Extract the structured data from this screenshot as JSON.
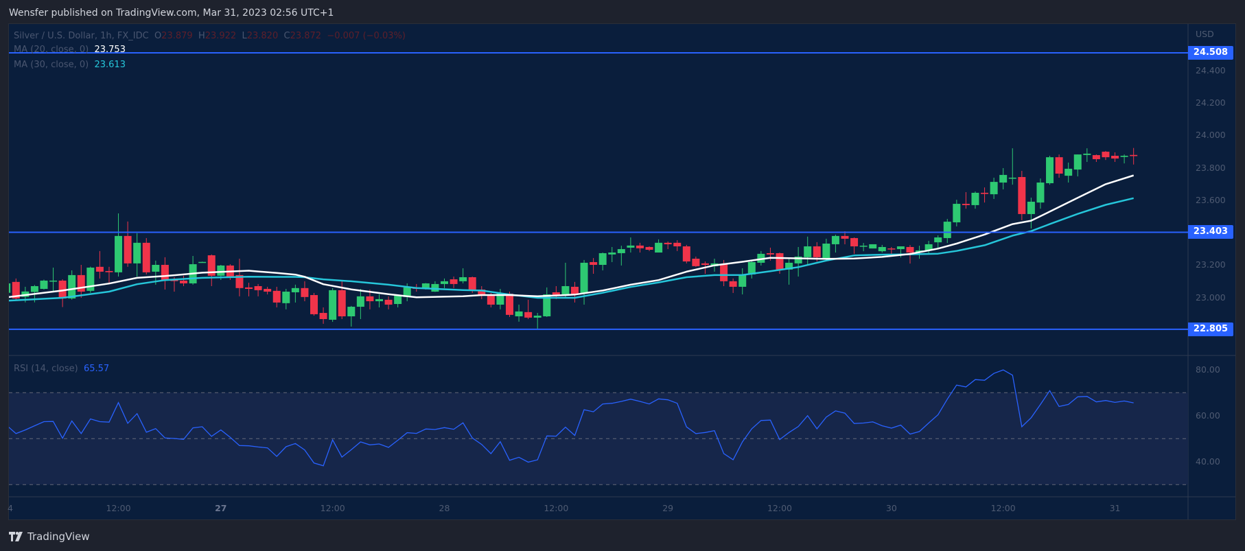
{
  "header": {
    "published": "Wensfer published on TradingView.com, Mar 31, 2023 02:56 UTC+1"
  },
  "legend": {
    "symbol": "Silver / U.S. Dollar, 1h, FX_IDC",
    "o_label": "O",
    "o_value": "23.879",
    "h_label": "H",
    "h_value": "23.922",
    "l_label": "L",
    "l_value": "23.820",
    "c_label": "C",
    "c_value": "23.872",
    "change": "−0.007 (−0.03%)",
    "ma20_label": "MA (20, close, 0)",
    "ma20_value": "23.753",
    "ma30_label": "MA (30, close, 0)",
    "ma30_value": "23.613",
    "rsi_label": "RSI (14, close)",
    "rsi_value": "65.57"
  },
  "price_axis": {
    "currency": "USD",
    "ticks": [
      "24.400",
      "24.200",
      "24.000",
      "23.800",
      "23.600",
      "23.200",
      "23.000"
    ],
    "tick_values": [
      24.4,
      24.2,
      24.0,
      23.8,
      23.6,
      23.2,
      23.0
    ],
    "level_tags": [
      "24.508",
      "23.403",
      "22.805"
    ],
    "level_values": [
      24.508,
      23.403,
      22.805
    ]
  },
  "rsi_axis": {
    "ticks": [
      "80.00",
      "60.00",
      "40.00"
    ],
    "tick_values": [
      80,
      60,
      40
    ],
    "bands": [
      70,
      50,
      30
    ]
  },
  "time_axis": {
    "labels": [
      "4",
      "12:00",
      "27",
      "12:00",
      "28",
      "12:00",
      "29",
      "12:00",
      "30",
      "12:00",
      "31"
    ],
    "bar_index": [
      0,
      12,
      23,
      35,
      47,
      59,
      71,
      83,
      95,
      107,
      119
    ],
    "bold": [
      false,
      false,
      true,
      false,
      false,
      false,
      false,
      false,
      false,
      false,
      false
    ]
  },
  "logo": {
    "text": "TradingView"
  },
  "colors": {
    "up": "#2ec972",
    "down": "#f0344a",
    "ma20": "#ffffff",
    "ma30": "#26c6da",
    "level": "#2962ff",
    "rsi": "#2962ff",
    "rsi_band": "#16264a"
  },
  "chart_data": {
    "type": "candlestick",
    "title": "Silver / U.S. Dollar, 1h, FX_IDC",
    "ylim": [
      22.64,
      24.58
    ],
    "ohlc": [
      [
        23.03,
        23.095,
        23.0,
        23.088
      ],
      [
        23.097,
        23.118,
        22.981,
        22.995
      ],
      [
        23.005,
        23.067,
        22.971,
        23.038
      ],
      [
        23.035,
        23.078,
        22.971,
        23.071
      ],
      [
        23.054,
        23.111,
        23.05,
        23.105
      ],
      [
        23.103,
        23.185,
        23.039,
        23.105
      ],
      [
        23.105,
        23.113,
        22.942,
        22.995
      ],
      [
        22.995,
        23.168,
        22.988,
        23.139
      ],
      [
        23.139,
        23.202,
        22.999,
        23.037
      ],
      [
        23.042,
        23.191,
        23.03,
        23.185
      ],
      [
        23.19,
        23.287,
        23.118,
        23.16
      ],
      [
        23.164,
        23.19,
        23.082,
        23.157
      ],
      [
        23.156,
        23.519,
        23.13,
        23.38
      ],
      [
        23.38,
        23.469,
        23.19,
        23.211
      ],
      [
        23.211,
        23.397,
        23.13,
        23.338
      ],
      [
        23.338,
        23.367,
        23.143,
        23.156
      ],
      [
        23.16,
        23.228,
        23.08,
        23.202
      ],
      [
        23.202,
        23.249,
        23.05,
        23.105
      ],
      [
        23.111,
        23.126,
        23.037,
        23.102
      ],
      [
        23.105,
        23.135,
        23.071,
        23.088
      ],
      [
        23.088,
        23.257,
        23.08,
        23.206
      ],
      [
        23.218,
        23.222,
        23.216,
        23.22
      ],
      [
        23.261,
        23.266,
        23.071,
        23.135
      ],
      [
        23.135,
        23.202,
        23.109,
        23.198
      ],
      [
        23.198,
        23.206,
        23.109,
        23.13
      ],
      [
        23.139,
        23.24,
        23.008,
        23.059
      ],
      [
        23.063,
        23.092,
        23.008,
        23.054
      ],
      [
        23.071,
        23.084,
        23.008,
        23.046
      ],
      [
        23.054,
        23.067,
        23.02,
        23.037
      ],
      [
        23.042,
        23.067,
        22.94,
        22.97
      ],
      [
        22.966,
        23.054,
        22.928,
        23.037
      ],
      [
        23.033,
        23.08,
        22.97,
        23.059
      ],
      [
        23.059,
        23.101,
        22.978,
        23.004
      ],
      [
        23.016,
        23.029,
        22.889,
        22.898
      ],
      [
        22.906,
        22.94,
        22.839,
        22.868
      ],
      [
        22.864,
        23.059,
        22.851,
        23.046
      ],
      [
        23.046,
        23.109,
        22.868,
        22.885
      ],
      [
        22.885,
        22.949,
        22.822,
        22.944
      ],
      [
        22.944,
        23.054,
        22.868,
        23.008
      ],
      [
        23.008,
        23.05,
        22.928,
        22.978
      ],
      [
        22.978,
        23.02,
        22.94,
        22.991
      ],
      [
        22.987,
        23.008,
        22.928,
        22.957
      ],
      [
        22.961,
        23.02,
        22.94,
        23.012
      ],
      [
        23.004,
        23.088,
        22.978,
        23.063
      ],
      [
        23.063,
        23.084,
        23.037,
        23.054
      ],
      [
        23.054,
        23.09,
        23.05,
        23.088
      ],
      [
        23.037,
        23.101,
        23.035,
        23.084
      ],
      [
        23.084,
        23.118,
        23.059,
        23.101
      ],
      [
        23.113,
        23.13,
        23.059,
        23.084
      ],
      [
        23.101,
        23.181,
        23.088,
        23.126
      ],
      [
        23.126,
        23.13,
        23.029,
        23.05
      ],
      [
        23.05,
        23.071,
        22.991,
        23.012
      ],
      [
        23.012,
        23.029,
        22.94,
        22.957
      ],
      [
        22.957,
        23.054,
        22.928,
        23.025
      ],
      [
        23.025,
        23.037,
        22.881,
        22.894
      ],
      [
        22.885,
        22.957,
        22.852,
        22.915
      ],
      [
        22.911,
        22.987,
        22.868,
        22.877
      ],
      [
        22.877,
        22.906,
        22.809,
        22.889
      ],
      [
        22.885,
        23.063,
        22.881,
        23.02
      ],
      [
        23.033,
        23.071,
        22.991,
        23.012
      ],
      [
        23.012,
        23.215,
        22.999,
        23.071
      ],
      [
        23.067,
        23.097,
        22.97,
        23.02
      ],
      [
        23.029,
        23.232,
        22.957,
        23.215
      ],
      [
        23.219,
        23.244,
        23.147,
        23.202
      ],
      [
        23.202,
        23.278,
        23.168,
        23.274
      ],
      [
        23.266,
        23.312,
        23.219,
        23.278
      ],
      [
        23.274,
        23.32,
        23.198,
        23.299
      ],
      [
        23.308,
        23.371,
        23.278,
        23.321
      ],
      [
        23.321,
        23.338,
        23.278,
        23.304
      ],
      [
        23.312,
        23.316,
        23.287,
        23.295
      ],
      [
        23.278,
        23.359,
        23.278,
        23.338
      ],
      [
        23.338,
        23.346,
        23.299,
        23.329
      ],
      [
        23.338,
        23.354,
        23.287,
        23.316
      ],
      [
        23.316,
        23.325,
        23.211,
        23.223
      ],
      [
        23.24,
        23.253,
        23.19,
        23.194
      ],
      [
        23.211,
        23.223,
        23.147,
        23.202
      ],
      [
        23.194,
        23.24,
        23.16,
        23.211
      ],
      [
        23.206,
        23.232,
        23.071,
        23.101
      ],
      [
        23.101,
        23.118,
        23.029,
        23.067
      ],
      [
        23.067,
        23.181,
        23.02,
        23.143
      ],
      [
        23.143,
        23.232,
        23.118,
        23.219
      ],
      [
        23.215,
        23.287,
        23.198,
        23.27
      ],
      [
        23.274,
        23.308,
        23.228,
        23.266
      ],
      [
        23.274,
        23.278,
        23.147,
        23.173
      ],
      [
        23.173,
        23.244,
        23.08,
        23.215
      ],
      [
        23.211,
        23.312,
        23.13,
        23.253
      ],
      [
        23.249,
        23.376,
        23.206,
        23.316
      ],
      [
        23.316,
        23.342,
        23.223,
        23.249
      ],
      [
        23.236,
        23.363,
        23.236,
        23.333
      ],
      [
        23.329,
        23.388,
        23.278,
        23.38
      ],
      [
        23.38,
        23.409,
        23.329,
        23.363
      ],
      [
        23.367,
        23.371,
        23.27,
        23.316
      ],
      [
        23.318,
        23.337,
        23.286,
        23.32
      ],
      [
        23.303,
        23.329,
        23.303,
        23.329
      ],
      [
        23.286,
        23.325,
        23.278,
        23.312
      ],
      [
        23.303,
        23.312,
        23.269,
        23.299
      ],
      [
        23.299,
        23.316,
        23.248,
        23.316
      ],
      [
        23.312,
        23.324,
        23.21,
        23.278
      ],
      [
        23.278,
        23.32,
        23.24,
        23.291
      ],
      [
        23.291,
        23.35,
        23.269,
        23.329
      ],
      [
        23.341,
        23.384,
        23.303,
        23.371
      ],
      [
        23.367,
        23.485,
        23.337,
        23.468
      ],
      [
        23.464,
        23.603,
        23.439,
        23.578
      ],
      [
        23.578,
        23.65,
        23.548,
        23.57
      ],
      [
        23.57,
        23.654,
        23.548,
        23.646
      ],
      [
        23.646,
        23.679,
        23.586,
        23.639
      ],
      [
        23.637,
        23.739,
        23.608,
        23.713
      ],
      [
        23.709,
        23.798,
        23.667,
        23.756
      ],
      [
        23.736,
        23.92,
        23.696,
        23.739
      ],
      [
        23.743,
        23.781,
        23.477,
        23.515
      ],
      [
        23.515,
        23.616,
        23.426,
        23.591
      ],
      [
        23.586,
        23.734,
        23.548,
        23.709
      ],
      [
        23.705,
        23.874,
        23.696,
        23.865
      ],
      [
        23.865,
        23.882,
        23.739,
        23.764
      ],
      [
        23.751,
        23.832,
        23.709,
        23.794
      ],
      [
        23.789,
        23.882,
        23.747,
        23.882
      ],
      [
        23.879,
        23.92,
        23.836,
        23.887
      ],
      [
        23.878,
        23.882,
        23.836,
        23.853
      ],
      [
        23.899,
        23.903,
        23.848,
        23.865
      ],
      [
        23.874,
        23.895,
        23.836,
        23.857
      ],
      [
        23.867,
        23.882,
        23.827,
        23.874
      ],
      [
        23.879,
        23.922,
        23.82,
        23.872
      ]
    ],
    "ma20": [
      [
        0,
        23.002
      ],
      [
        6,
        23.044
      ],
      [
        11,
        23.087
      ],
      [
        14,
        23.122
      ],
      [
        17,
        23.133
      ],
      [
        21,
        23.154
      ],
      [
        26,
        23.166
      ],
      [
        29,
        23.152
      ],
      [
        31,
        23.142
      ],
      [
        32,
        23.129
      ],
      [
        34,
        23.083
      ],
      [
        37,
        23.051
      ],
      [
        41,
        23.021
      ],
      [
        44,
        23.002
      ],
      [
        49,
        23.009
      ],
      [
        51,
        23.016
      ],
      [
        54,
        23.016
      ],
      [
        57,
        23.009
      ],
      [
        60,
        23.016
      ],
      [
        61,
        23.019
      ],
      [
        64,
        23.044
      ],
      [
        67,
        23.08
      ],
      [
        70,
        23.108
      ],
      [
        73,
        23.16
      ],
      [
        76,
        23.199
      ],
      [
        79,
        23.221
      ],
      [
        82,
        23.245
      ],
      [
        85,
        23.242
      ],
      [
        88,
        23.239
      ],
      [
        91,
        23.241
      ],
      [
        94,
        23.251
      ],
      [
        97,
        23.269
      ],
      [
        100,
        23.302
      ],
      [
        102,
        23.333
      ],
      [
        105,
        23.389
      ],
      [
        108,
        23.453
      ],
      [
        110,
        23.474
      ],
      [
        112,
        23.53
      ],
      [
        115,
        23.615
      ],
      [
        118,
        23.699
      ],
      [
        121,
        23.753
      ]
    ],
    "ma30": [
      [
        0,
        22.981
      ],
      [
        6,
        22.999
      ],
      [
        11,
        23.037
      ],
      [
        14,
        23.083
      ],
      [
        17,
        23.108
      ],
      [
        21,
        23.122
      ],
      [
        26,
        23.129
      ],
      [
        29,
        23.128
      ],
      [
        31,
        23.128
      ],
      [
        32,
        23.126
      ],
      [
        34,
        23.113
      ],
      [
        37,
        23.101
      ],
      [
        41,
        23.08
      ],
      [
        44,
        23.059
      ],
      [
        49,
        23.047
      ],
      [
        51,
        23.044
      ],
      [
        54,
        23.019
      ],
      [
        57,
        22.999
      ],
      [
        60,
        22.999
      ],
      [
        61,
        22.999
      ],
      [
        64,
        23.03
      ],
      [
        67,
        23.066
      ],
      [
        70,
        23.094
      ],
      [
        73,
        23.126
      ],
      [
        76,
        23.139
      ],
      [
        79,
        23.14
      ],
      [
        82,
        23.163
      ],
      [
        85,
        23.188
      ],
      [
        88,
        23.228
      ],
      [
        91,
        23.26
      ],
      [
        94,
        23.265
      ],
      [
        97,
        23.267
      ],
      [
        100,
        23.271
      ],
      [
        102,
        23.288
      ],
      [
        105,
        23.323
      ],
      [
        108,
        23.382
      ],
      [
        110,
        23.41
      ],
      [
        112,
        23.453
      ],
      [
        115,
        23.516
      ],
      [
        118,
        23.572
      ],
      [
        121,
        23.613
      ]
    ],
    "rsi": [
      55.8,
      52.2,
      53.8,
      55.6,
      57.4,
      57.5,
      50.2,
      57.7,
      52.2,
      58.6,
      57.4,
      57.2,
      65.7,
      56.7,
      60.9,
      52.8,
      54.4,
      50.3,
      50.1,
      49.7,
      54.7,
      55.2,
      51.0,
      53.8,
      50.6,
      47.0,
      46.9,
      46.4,
      46.0,
      42.3,
      46.5,
      47.9,
      45.1,
      39.4,
      38.2,
      49.5,
      42.0,
      45.2,
      48.6,
      47.3,
      47.7,
      46.2,
      49.3,
      52.6,
      52.3,
      54.2,
      54.0,
      54.8,
      54.1,
      56.9,
      50.3,
      47.5,
      43.5,
      48.7,
      40.6,
      41.9,
      39.8,
      40.8,
      51.2,
      51.1,
      55.0,
      51.4,
      62.6,
      61.7,
      65.1,
      65.4,
      66.2,
      67.2,
      66.2,
      65.1,
      67.3,
      66.9,
      65.4,
      55.1,
      52.2,
      52.7,
      53.5,
      43.5,
      40.8,
      48.6,
      54.3,
      57.9,
      58.1,
      49.6,
      52.7,
      55.3,
      60.0,
      54.3,
      59.4,
      62.1,
      61.1,
      56.6,
      56.8,
      57.3,
      55.6,
      54.6,
      55.9,
      52.0,
      53.1,
      56.8,
      60.4,
      67.2,
      73.3,
      72.5,
      75.7,
      75.4,
      78.4,
      79.9,
      77.6,
      55.2,
      59.1,
      64.9,
      70.9,
      64.0,
      64.9,
      68.2,
      68.4,
      66.0,
      66.6,
      65.8,
      66.4,
      65.57
    ],
    "levels": [
      24.508,
      23.403,
      22.805
    ],
    "rsi_ylim": [
      25,
      85
    ]
  }
}
